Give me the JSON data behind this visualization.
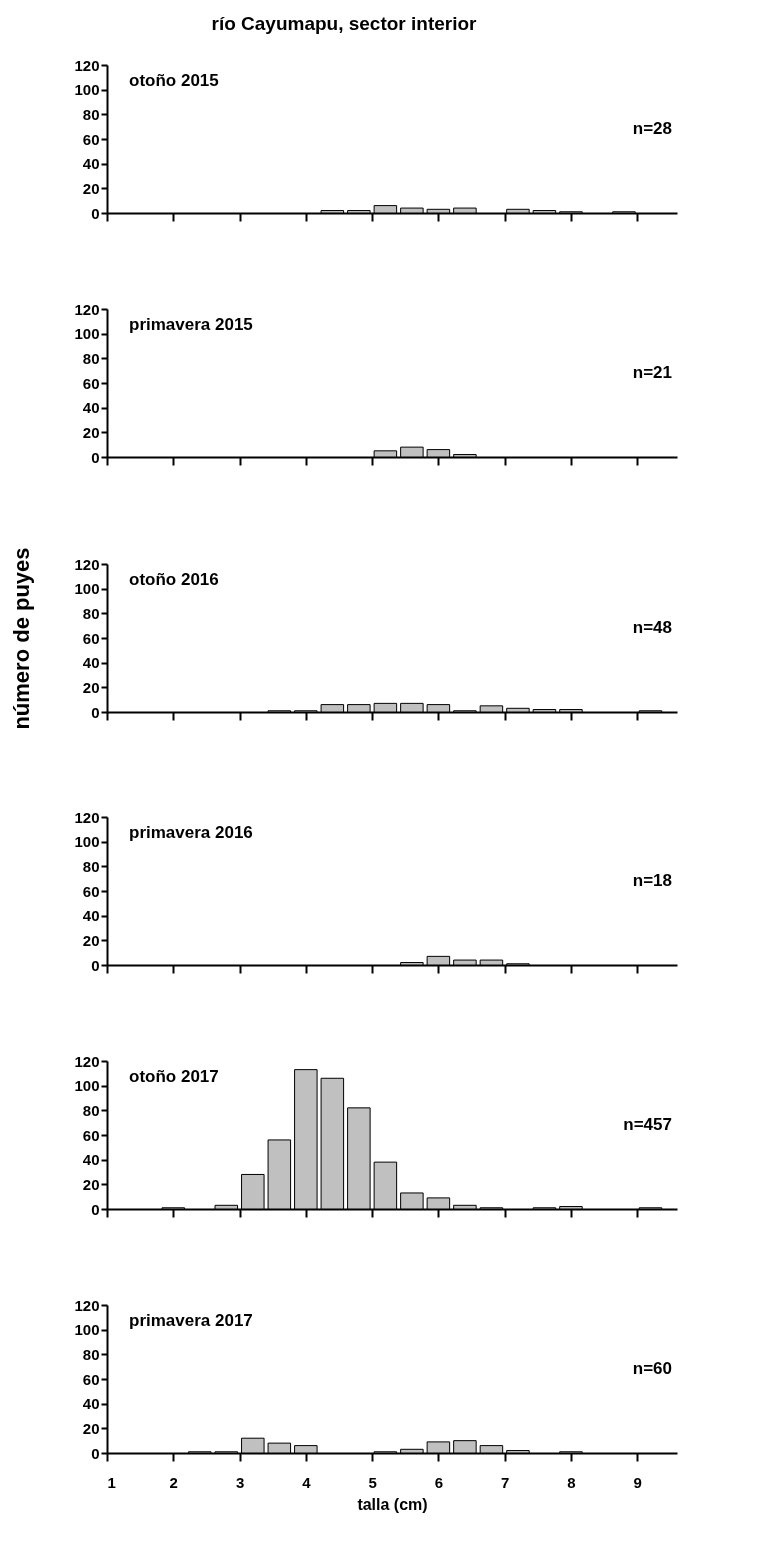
{
  "chart_data": [
    {
      "type": "histogram",
      "title": "río Cayumapu, sector interior",
      "annotations": [
        "otoño 2015",
        "n=28"
      ],
      "bins": [
        1.8,
        2.2,
        2.6,
        3.0,
        3.4,
        3.8,
        4.2,
        4.6,
        5.0,
        5.4,
        5.8,
        6.2,
        6.6,
        7.0,
        7.4,
        7.8,
        8.2,
        8.6,
        9.0,
        9.4
      ],
      "values": [
        0,
        0,
        0,
        0,
        0,
        0,
        2,
        2,
        6,
        4,
        3,
        4,
        0,
        3,
        2,
        1,
        0,
        1,
        0
      ],
      "color": "#c0c0c0",
      "xlim": [
        1,
        9.6
      ],
      "xticks": [
        1,
        2,
        3,
        4,
        5,
        6,
        7,
        8,
        9
      ],
      "ylim": [
        0,
        120
      ],
      "yticks": [
        0,
        20,
        40,
        60,
        80,
        100,
        120
      ],
      "grid": false,
      "tick_labels": "y"
    },
    {
      "type": "histogram",
      "annotations": [
        "primavera 2015",
        "n=21"
      ],
      "bins": [
        1.8,
        2.2,
        2.6,
        3.0,
        3.4,
        3.8,
        4.2,
        4.6,
        5.0,
        5.4,
        5.8,
        6.2,
        6.6,
        7.0,
        7.4,
        7.8,
        8.2,
        8.6,
        9.0,
        9.4
      ],
      "values": [
        0,
        0,
        0,
        0,
        0,
        0,
        0,
        0,
        5,
        8,
        6,
        2,
        0,
        0,
        0,
        0,
        0,
        0,
        0
      ],
      "color": "#c0c0c0",
      "xlim": [
        1,
        9.6
      ],
      "xticks": [
        1,
        2,
        3,
        4,
        5,
        6,
        7,
        8,
        9
      ],
      "ylim": [
        0,
        120
      ],
      "yticks": [
        0,
        20,
        40,
        60,
        80,
        100,
        120
      ],
      "grid": false,
      "tick_labels": "y"
    },
    {
      "type": "histogram",
      "ylabel": "número de puyes",
      "annotations": [
        "otoño 2016",
        "n=48"
      ],
      "bins": [
        1.8,
        2.2,
        2.6,
        3.0,
        3.4,
        3.8,
        4.2,
        4.6,
        5.0,
        5.4,
        5.8,
        6.2,
        6.6,
        7.0,
        7.4,
        7.8,
        8.2,
        8.6,
        9.0,
        9.4
      ],
      "values": [
        0,
        0,
        0,
        0,
        1,
        1,
        6,
        6,
        7,
        7,
        6,
        1,
        5,
        3,
        2,
        2,
        0,
        0,
        1
      ],
      "color": "#c0c0c0",
      "xlim": [
        1,
        9.6
      ],
      "xticks": [
        1,
        2,
        3,
        4,
        5,
        6,
        7,
        8,
        9
      ],
      "ylim": [
        0,
        120
      ],
      "yticks": [
        0,
        20,
        40,
        60,
        80,
        100,
        120
      ],
      "grid": false,
      "tick_labels": "y"
    },
    {
      "type": "histogram",
      "annotations": [
        "primavera 2016",
        "n=18"
      ],
      "bins": [
        1.8,
        2.2,
        2.6,
        3.0,
        3.4,
        3.8,
        4.2,
        4.6,
        5.0,
        5.4,
        5.8,
        6.2,
        6.6,
        7.0,
        7.4,
        7.8,
        8.2,
        8.6,
        9.0,
        9.4
      ],
      "values": [
        0,
        0,
        0,
        0,
        0,
        0,
        0,
        0,
        0,
        2,
        7,
        4,
        4,
        1,
        0,
        0,
        0,
        0,
        0
      ],
      "color": "#c0c0c0",
      "xlim": [
        1,
        9.6
      ],
      "xticks": [
        1,
        2,
        3,
        4,
        5,
        6,
        7,
        8,
        9
      ],
      "ylim": [
        0,
        120
      ],
      "yticks": [
        0,
        20,
        40,
        60,
        80,
        100,
        120
      ],
      "grid": false,
      "tick_labels": "y"
    },
    {
      "type": "histogram",
      "annotations": [
        "otoño 2017",
        "n=457"
      ],
      "bins": [
        1.8,
        2.2,
        2.6,
        3.0,
        3.4,
        3.8,
        4.2,
        4.6,
        5.0,
        5.4,
        5.8,
        6.2,
        6.6,
        7.0,
        7.4,
        7.8,
        8.2,
        8.6,
        9.0,
        9.4
      ],
      "values": [
        1,
        0,
        3,
        28,
        56,
        113,
        106,
        82,
        38,
        13,
        9,
        3,
        1,
        0,
        1,
        2,
        0,
        0,
        1
      ],
      "color": "#c0c0c0",
      "xlim": [
        1,
        9.6
      ],
      "xticks": [
        1,
        2,
        3,
        4,
        5,
        6,
        7,
        8,
        9
      ],
      "ylim": [
        0,
        120
      ],
      "yticks": [
        0,
        20,
        40,
        60,
        80,
        100,
        120
      ],
      "grid": false,
      "tick_labels": "y"
    },
    {
      "type": "histogram",
      "xlabel": "talla (cm)",
      "annotations": [
        "primavera 2017",
        "n=60"
      ],
      "bins": [
        1.8,
        2.2,
        2.6,
        3.0,
        3.4,
        3.8,
        4.2,
        4.6,
        5.0,
        5.4,
        5.8,
        6.2,
        6.6,
        7.0,
        7.4,
        7.8,
        8.2,
        8.6,
        9.0,
        9.4
      ],
      "values": [
        0,
        1,
        1,
        12,
        8,
        6,
        0,
        0,
        1,
        3,
        9,
        10,
        6,
        2,
        0,
        1,
        0,
        0,
        0
      ],
      "color": "#c0c0c0",
      "xlim": [
        1,
        9.6
      ],
      "xticks": [
        1,
        2,
        3,
        4,
        5,
        6,
        7,
        8,
        9
      ],
      "ylim": [
        0,
        120
      ],
      "yticks": [
        0,
        20,
        40,
        60,
        80,
        100,
        120
      ],
      "grid": false
    }
  ]
}
